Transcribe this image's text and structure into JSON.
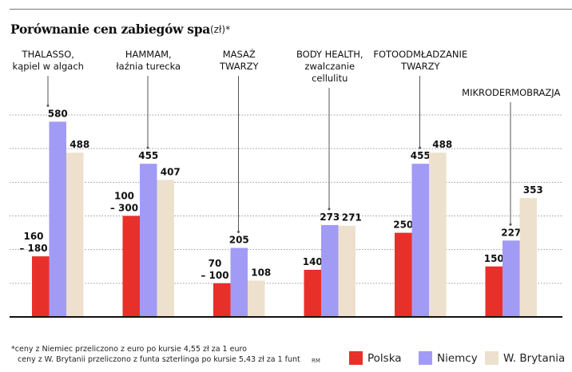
{
  "chart_data": {
    "type": "bar",
    "title": "Porównanie cen zabiegów spa",
    "unit": "(zł)*",
    "categories": [
      [
        "THALASSO,",
        "kąpiel w algach"
      ],
      [
        "HAMMAM,",
        "łaźnia turecka"
      ],
      [
        "MASAŻ",
        "TWARZY"
      ],
      [
        "BODY HEALTH,",
        "zwalczanie",
        "cellulitu"
      ],
      [
        "FOTOODMŁADZANIE",
        "TWARZY"
      ],
      [
        "MIKRODERMOBRAZJA"
      ]
    ],
    "series": [
      {
        "name": "Polska",
        "color": "#e8302a",
        "values": [
          180,
          300,
          100,
          140,
          250,
          150
        ],
        "labels": [
          [
            "160",
            "– 180"
          ],
          [
            "100",
            "– 300"
          ],
          [
            "70",
            "– 100"
          ],
          [
            "140"
          ],
          [
            "250"
          ],
          [
            "150"
          ]
        ]
      },
      {
        "name": "Niemcy",
        "color": "#a19bf6",
        "values": [
          580,
          455,
          205,
          273,
          455,
          227
        ],
        "labels": [
          [
            "580"
          ],
          [
            "455"
          ],
          [
            "205"
          ],
          [
            "273"
          ],
          [
            "455"
          ],
          [
            "227"
          ]
        ]
      },
      {
        "name": "W. Brytania",
        "color": "#ede1cd",
        "values": [
          488,
          407,
          108,
          271,
          488,
          353
        ],
        "labels": [
          [
            "488"
          ],
          [
            "407"
          ],
          [
            "108"
          ],
          [
            "271"
          ],
          [
            "488"
          ],
          [
            "353"
          ]
        ]
      }
    ],
    "ylim": [
      0,
      600
    ],
    "grid": true,
    "legend": "bottom-right"
  },
  "footnote": {
    "line1": "*ceny z Niemiec przeliczono z euro po kursie 4,55 zł za 1 euro",
    "line2": "ceny z W. Brytanii przeliczono z funta szterlinga po kursie 5,43 zł za 1 funt",
    "credit": "RM"
  }
}
